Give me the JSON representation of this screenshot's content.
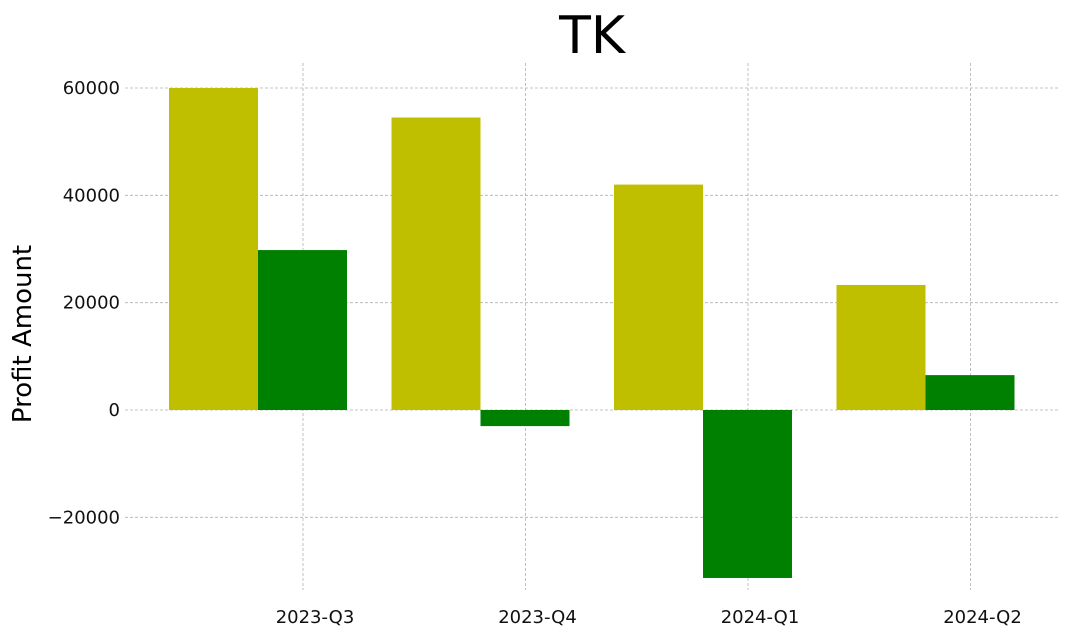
{
  "chart_data": {
    "type": "bar",
    "title": "TK",
    "xlabel": "",
    "ylabel": "Profit Amount",
    "categories": [
      "2023-Q3",
      "2023-Q4",
      "2024-Q1",
      "2024-Q2"
    ],
    "series": [
      {
        "color": "#bfbf00",
        "values": [
          60000,
          54500,
          42000,
          23300
        ]
      },
      {
        "color": "#008000",
        "values": [
          29800,
          -3000,
          -31300,
          6500
        ]
      }
    ],
    "ylim": [
      -32500,
      64500
    ],
    "yticks": [
      60000,
      40000,
      20000,
      0,
      -20000
    ],
    "ytick_labels": [
      "60000",
      "40000",
      "20000",
      "0",
      "−20000"
    ],
    "grid": true,
    "legend": "none"
  }
}
